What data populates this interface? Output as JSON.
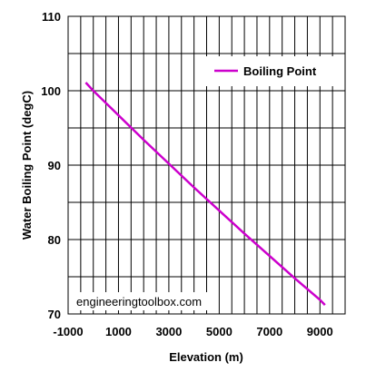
{
  "chart_data": {
    "type": "line",
    "title": "",
    "xlabel": "Elevation (m)",
    "ylabel": "Water Boiling Point (degC)",
    "xlim": [
      -1000,
      10000
    ],
    "ylim": [
      70,
      110
    ],
    "xticks": [
      -1000,
      1000,
      3000,
      5000,
      7000,
      9000
    ],
    "yticks": [
      70,
      80,
      90,
      100,
      110
    ],
    "grid": true,
    "legend_position": "top-right",
    "series": [
      {
        "name": "Boiling Point",
        "color": "#cc00cc",
        "x": [
          -300,
          0,
          1000,
          2000,
          3000,
          4000,
          5000,
          6000,
          7000,
          8000,
          9000,
          9200
        ],
        "y": [
          101.1,
          100.0,
          96.7,
          93.4,
          90.2,
          87.0,
          83.9,
          80.8,
          77.8,
          74.8,
          71.9,
          71.2
        ]
      }
    ]
  },
  "watermark": "engineeringtoolbox.com"
}
